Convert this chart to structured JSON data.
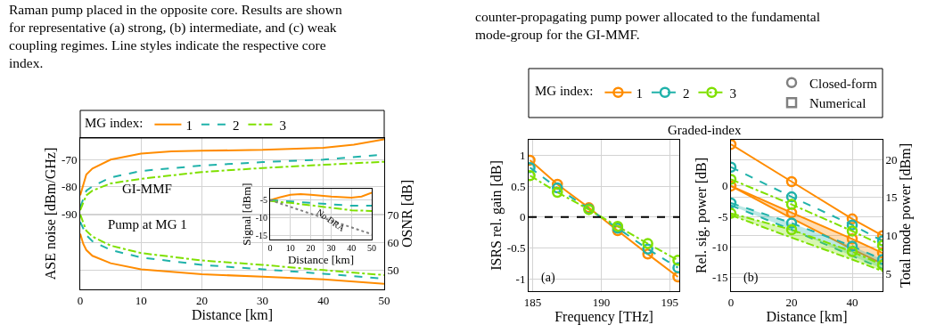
{
  "chart_data": [
    {
      "type": "line",
      "xlabel": "Distance [km]",
      "ylabel": "ASE noise [dBm/GHz]",
      "y2label": "OSNR [dB]",
      "legend_title": "MG index:",
      "legend": "top",
      "grid": true,
      "xlim": [
        0,
        50
      ],
      "xticks": [
        0,
        10,
        20,
        30,
        40,
        50
      ],
      "ylim": [
        -118,
        -62
      ],
      "yticks": [
        -90,
        -80,
        -70
      ],
      "y2lim": [
        43,
        98
      ],
      "y2ticks": [
        50,
        60,
        70
      ],
      "annotations": [
        "Raman pump placed in the opposite core. Results are shown\nfor representative (a) strong, (b) intermediate, and (c) weak\ncoupling regimes. Line styles indicate the respective core\nindex.",
        "GI-MMF",
        "Pump at MG 1"
      ],
      "series": [
        {
          "name": "1",
          "color": "#ff8c00",
          "line_style": "solid",
          "x": [
            0,
            1,
            2,
            5,
            10,
            15,
            20,
            30,
            40,
            45,
            50
          ],
          "values": [
            -83.2,
            -75.5,
            -73.3,
            -70,
            -67.8,
            -66.9,
            -66.7,
            -66.4,
            -65.6,
            -64.5,
            -62.5
          ]
        },
        {
          "name": "2",
          "color": "#20b2aa",
          "line_style": "dashed",
          "x": [
            0,
            1,
            2,
            5,
            10,
            20,
            30,
            40,
            50
          ],
          "values": [
            -87.6,
            -81.5,
            -79.9,
            -76.6,
            -74.2,
            -72.2,
            -70.9,
            -70,
            -68.1
          ]
        },
        {
          "name": "3",
          "color": "#7fe000",
          "line_style": "dashdot",
          "x": [
            0,
            1,
            2,
            5,
            10,
            20,
            30,
            40,
            50
          ],
          "values": [
            -88.7,
            -83.2,
            -81.5,
            -78.8,
            -77.1,
            -74.6,
            -73.1,
            -71.9,
            -70.8
          ]
        },
        {
          "color": "#ff8c00",
          "line_style": "solid",
          "axis": "y2",
          "x": [
            0,
            0.5,
            1,
            2,
            5,
            10,
            20,
            30,
            40,
            50
          ],
          "values": [
            63.2,
            59.5,
            57.3,
            55.2,
            52.5,
            50.3,
            48.5,
            47.6,
            46.6,
            45
          ]
        },
        {
          "color": "#20b2aa",
          "line_style": "dashed",
          "axis": "y2",
          "x": [
            0,
            1,
            2,
            5,
            10,
            20,
            30,
            40,
            50
          ],
          "values": [
            67.5,
            62.7,
            60.5,
            57.3,
            54.6,
            51.9,
            50.3,
            48.7,
            46.9
          ]
        },
        {
          "color": "#7fe000",
          "line_style": "dashdot",
          "axis": "y2",
          "x": [
            0,
            1,
            2,
            5,
            10,
            20,
            30,
            40,
            50
          ],
          "values": [
            70.2,
            64.3,
            62.2,
            58.9,
            56.2,
            53.5,
            51.9,
            50,
            48.2
          ]
        }
      ]
    },
    {
      "type": "line",
      "xlabel": "Distance [km]",
      "ylabel": "Signal [dBm]",
      "grid": true,
      "xlim": [
        0,
        50
      ],
      "xticks": [
        0,
        10,
        20,
        30,
        40,
        50
      ],
      "ylim": [
        -16.2,
        -1.8
      ],
      "yticks": [
        -15,
        -10,
        -5
      ],
      "annotations": [
        {
          "text": "No DRA",
          "x": 30,
          "y": -10.8
        }
      ],
      "series": [
        {
          "color": "#ff8c00",
          "line_style": "solid",
          "x": [
            0,
            5,
            10,
            15,
            20,
            30,
            40,
            45,
            50
          ],
          "values": [
            -5,
            -4.2,
            -3.5,
            -3.3,
            -3.5,
            -4,
            -4.3,
            -4,
            -2.9
          ]
        },
        {
          "color": "#20b2aa",
          "line_style": "dashed",
          "x": [
            0,
            10,
            20,
            30,
            40,
            50
          ],
          "values": [
            -5,
            -5.4,
            -5.8,
            -6.2,
            -6.6,
            -6.6
          ]
        },
        {
          "color": "#7fe000",
          "line_style": "dashdot",
          "x": [
            0,
            10,
            20,
            30,
            40,
            50
          ],
          "values": [
            -5.3,
            -5.8,
            -6.5,
            -7.2,
            -7.9,
            -8.1
          ]
        },
        {
          "color": "#808080",
          "line_style": "dotted",
          "x": [
            0,
            50
          ],
          "values": [
            -5,
            -14.7
          ]
        }
      ]
    },
    {
      "type": "line",
      "title": "Graded-index",
      "xlabel": "Frequency [THz]",
      "ylabel": "ISRS rel. gain [dB]",
      "legend_title": "MG index:",
      "legend": "top",
      "grid": true,
      "marker": "circle",
      "xlim": [
        184.7,
        195.7
      ],
      "xticks": [
        185,
        190,
        195
      ],
      "ylim": [
        -1.2,
        1.25
      ],
      "yticks": [
        -1,
        -0.5,
        0,
        0.5,
        1
      ],
      "ref_lines": [
        {
          "axis": "y",
          "value": 0,
          "color": "#000000",
          "line_style": "dashed"
        }
      ],
      "annotations": [
        "counter-propagating pump power allocated to the fundamental\nmode-group for the GI-MMF.",
        "(a)"
      ],
      "x": [
        184.8,
        186.8,
        189.1,
        191.2,
        193.4,
        195.6
      ],
      "series": [
        {
          "name": "1",
          "color": "#ff8c00",
          "line_style": "solid",
          "values": [
            0.92,
            0.53,
            0.15,
            -0.22,
            -0.6,
            -0.97
          ]
        },
        {
          "name": "2",
          "color": "#20b2aa",
          "line_style": "dashed",
          "values": [
            0.8,
            0.47,
            0.13,
            -0.18,
            -0.52,
            -0.82
          ]
        },
        {
          "name": "3",
          "color": "#7fe000",
          "line_style": "dashdot",
          "values": [
            0.67,
            0.4,
            0.12,
            -0.15,
            -0.43,
            -0.7
          ]
        },
        {
          "name": "Closed-form",
          "type": "scatter",
          "color": "#808080",
          "marker": "circle",
          "values": [
            null,
            null,
            null,
            null,
            null,
            null
          ]
        },
        {
          "name": "Numerical",
          "type": "scatter",
          "color": "#808080",
          "marker": "square",
          "values": [
            null,
            null,
            null,
            null,
            null,
            null
          ]
        }
      ]
    },
    {
      "type": "line",
      "xlabel": "Distance [km]",
      "ylabel": "Rel. sig. power [dB]",
      "y2label": "Total mode power [dBm]",
      "grid": true,
      "marker": "circle",
      "xlim": [
        0,
        50
      ],
      "xticks": [
        0,
        20,
        40
      ],
      "ylim": [
        -17.3,
        7.6
      ],
      "yticks": [
        -15,
        -10,
        -5,
        0
      ],
      "y2lim": [
        2.7,
        22.6
      ],
      "y2ticks": [
        5,
        10,
        15,
        20
      ],
      "annotations": [
        "(b)"
      ],
      "x": [
        0,
        20,
        40,
        50
      ],
      "series": [
        {
          "color": "#ff8c00",
          "line_style": "solid",
          "axis": "y2",
          "values": [
            22,
            17.1,
            12.2,
            10
          ]
        },
        {
          "color": "#20b2aa",
          "line_style": "dashed",
          "axis": "y2",
          "values": [
            19,
            15.1,
            11.4,
            9.3
          ]
        },
        {
          "color": "#7fe000",
          "line_style": "dashdot",
          "axis": "y2",
          "values": [
            17.4,
            14.1,
            10.6,
            8.7
          ]
        },
        {
          "color": "#ff8c00",
          "line_style": "solid",
          "values": [
            0,
            -4.4,
            -8.7,
            -11
          ],
          "upper": [
            0,
            -4.4,
            -8.7,
            -11
          ],
          "lower": [
            0,
            -5.3,
            -10.4,
            -12.8
          ]
        },
        {
          "color": "#20b2aa",
          "line_style": "dashed",
          "values": [
            -2.8,
            -6.1,
            -9.9,
            -12.1
          ],
          "upper": [
            -2.8,
            -6.1,
            -9.9,
            -12.1
          ],
          "lower": [
            -3.2,
            -7.2,
            -11.5,
            -13.6
          ]
        },
        {
          "color": "#7fe000",
          "line_style": "dashdot",
          "values": [
            -4.5,
            -7.2,
            -10.8,
            -13
          ],
          "upper": [
            -4.5,
            -7.2,
            -10.8,
            -13
          ],
          "lower": [
            -4.8,
            -8.5,
            -12.1,
            -14
          ]
        }
      ]
    }
  ]
}
